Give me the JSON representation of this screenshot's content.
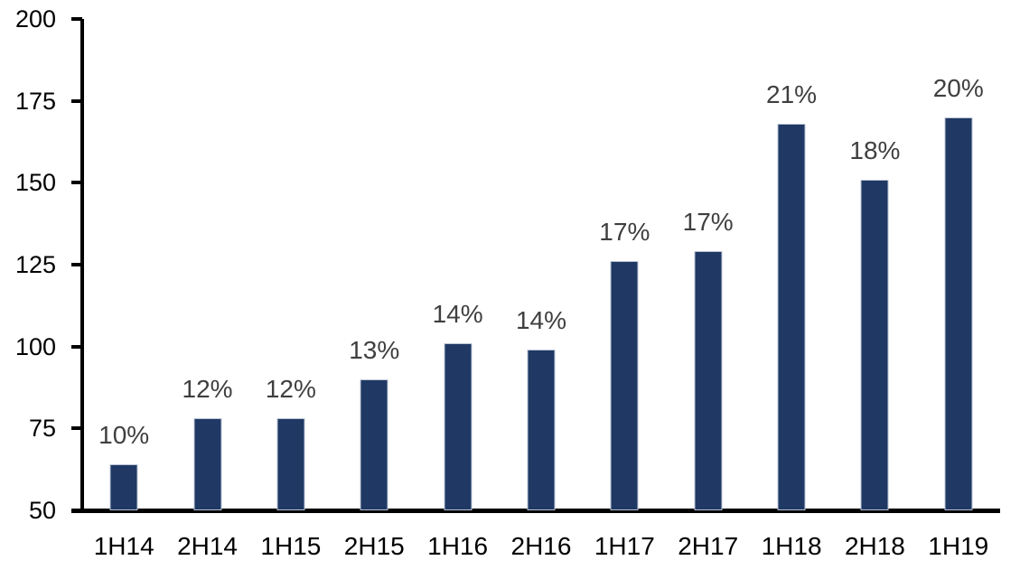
{
  "chart_data": {
    "type": "bar",
    "categories": [
      "1H14",
      "2H14",
      "1H15",
      "2H15",
      "1H16",
      "2H16",
      "1H17",
      "2H17",
      "1H18",
      "2H18",
      "1H19"
    ],
    "values": [
      64,
      78,
      78,
      90,
      101,
      99,
      126,
      129,
      168,
      151,
      170
    ],
    "bar_labels": [
      "10%",
      "12%",
      "12%",
      "13%",
      "14%",
      "14%",
      "17%",
      "17%",
      "21%",
      "18%",
      "20%"
    ],
    "title": "",
    "xlabel": "",
    "ylabel": "",
    "ylim": [
      50,
      200
    ],
    "yticks": [
      50,
      75,
      100,
      125,
      150,
      175,
      200
    ],
    "grid": false,
    "legend": false,
    "colors": {
      "bar_fill": "#1F3864",
      "bar_border": "#BBC5D5",
      "data_label": "#3F3F3F",
      "axis": "#000000",
      "background": "#FFFFFF"
    }
  }
}
